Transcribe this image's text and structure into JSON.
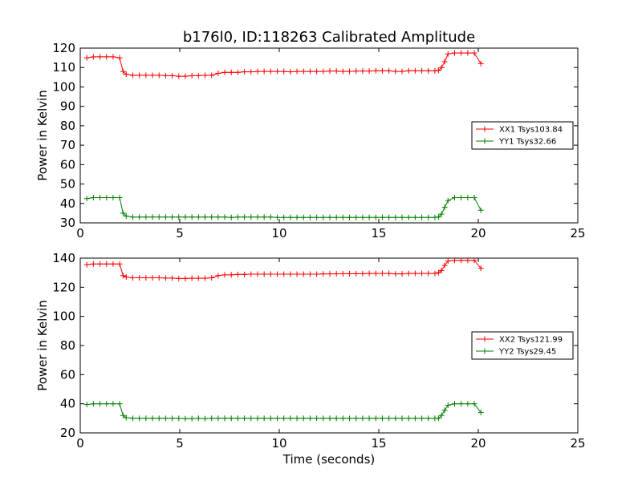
{
  "chart_data": [
    {
      "type": "line",
      "title": "b176l0, ID:118263 Calibrated Amplitude",
      "xlabel": "",
      "ylabel": "Power in Kelvin",
      "xlim": [
        0,
        25
      ],
      "ylim": [
        30,
        120
      ],
      "xticks": [
        "0",
        "5",
        "10",
        "15",
        "20",
        "25"
      ],
      "yticks": [
        "30",
        "40",
        "50",
        "60",
        "70",
        "80",
        "90",
        "100",
        "110",
        "120"
      ],
      "grid": false,
      "legend_position": "center-right",
      "series": [
        {
          "name": "XX1 Tsys103.84",
          "color": "#ff0000",
          "marker": "+",
          "x": [
            0.33,
            0.66,
            0.99,
            1.32,
            1.65,
            1.98,
            2.15,
            2.31,
            2.64,
            2.97,
            3.3,
            3.63,
            3.96,
            4.29,
            4.62,
            4.95,
            5.28,
            5.61,
            5.94,
            6.27,
            6.6,
            6.93,
            7.26,
            7.59,
            7.92,
            8.25,
            8.58,
            8.91,
            9.24,
            9.57,
            9.9,
            10.23,
            10.56,
            10.89,
            11.22,
            11.55,
            11.88,
            12.21,
            12.54,
            12.87,
            13.2,
            13.53,
            13.86,
            14.19,
            14.52,
            14.85,
            15.18,
            15.51,
            15.84,
            16.17,
            16.5,
            16.83,
            17.16,
            17.49,
            17.82,
            18.0,
            18.15,
            18.31,
            18.48,
            18.81,
            19.14,
            19.47,
            19.8,
            20.13
          ],
          "y": [
            115,
            115.5,
            115.5,
            115.5,
            115.5,
            115,
            108,
            106.5,
            106,
            106,
            106,
            106,
            106,
            105.8,
            105.8,
            105.5,
            105.5,
            105.8,
            105.8,
            106,
            106,
            107,
            107.5,
            107.5,
            107.5,
            107.8,
            107.8,
            108,
            108,
            108,
            108,
            108,
            107.8,
            108,
            108,
            108,
            108,
            108,
            108.2,
            108.2,
            108,
            108,
            108.2,
            108.2,
            108.2,
            108.3,
            108.3,
            108.3,
            108,
            108,
            108.3,
            108.3,
            108.3,
            108.3,
            108.3,
            108.5,
            110,
            113,
            117,
            117.5,
            117.5,
            117.5,
            117.5,
            112
          ]
        },
        {
          "name": "YY1 Tsys32.66",
          "color": "#008000",
          "marker": "+",
          "x": [
            0.33,
            0.66,
            0.99,
            1.32,
            1.65,
            1.98,
            2.15,
            2.31,
            2.64,
            2.97,
            3.3,
            3.63,
            3.96,
            4.29,
            4.62,
            4.95,
            5.28,
            5.61,
            5.94,
            6.27,
            6.6,
            6.93,
            7.26,
            7.59,
            7.92,
            8.25,
            8.58,
            8.91,
            9.24,
            9.57,
            9.9,
            10.23,
            10.56,
            10.89,
            11.22,
            11.55,
            11.88,
            12.21,
            12.54,
            12.87,
            13.2,
            13.53,
            13.86,
            14.19,
            14.52,
            14.85,
            15.18,
            15.51,
            15.84,
            16.17,
            16.5,
            16.83,
            17.16,
            17.49,
            17.82,
            18.0,
            18.15,
            18.31,
            18.48,
            18.81,
            19.14,
            19.47,
            19.8,
            20.13
          ],
          "y": [
            42.5,
            43,
            43,
            43,
            43,
            43,
            35,
            33.5,
            33,
            33,
            33,
            33,
            33,
            33,
            33,
            33,
            33,
            33,
            33,
            33,
            33,
            33,
            33,
            32.8,
            33,
            33,
            33,
            33,
            33,
            33,
            32.8,
            32.8,
            32.8,
            32.8,
            32.8,
            32.8,
            32.8,
            32.8,
            32.8,
            32.8,
            32.8,
            32.8,
            32.8,
            32.8,
            32.8,
            32.8,
            32.8,
            32.8,
            32.8,
            32.8,
            32.8,
            32.8,
            32.8,
            32.8,
            32.8,
            33,
            34.5,
            38,
            41.5,
            43,
            43,
            43,
            43,
            36.5
          ]
        }
      ]
    },
    {
      "type": "line",
      "title": "",
      "xlabel": "Time (seconds)",
      "ylabel": "Power in Kelvin",
      "xlim": [
        0,
        25
      ],
      "ylim": [
        20,
        140
      ],
      "xticks": [
        "0",
        "5",
        "10",
        "15",
        "20",
        "25"
      ],
      "yticks": [
        "20",
        "40",
        "60",
        "80",
        "100",
        "120",
        "140"
      ],
      "grid": false,
      "legend_position": "center-right",
      "series": [
        {
          "name": "XX2 Tsys121.99",
          "color": "#ff0000",
          "marker": "+",
          "x": [
            0.33,
            0.66,
            0.99,
            1.32,
            1.65,
            1.98,
            2.15,
            2.31,
            2.64,
            2.97,
            3.3,
            3.63,
            3.96,
            4.29,
            4.62,
            4.95,
            5.28,
            5.61,
            5.94,
            6.27,
            6.6,
            6.93,
            7.26,
            7.59,
            7.92,
            8.25,
            8.58,
            8.91,
            9.24,
            9.57,
            9.9,
            10.23,
            10.56,
            10.89,
            11.22,
            11.55,
            11.88,
            12.21,
            12.54,
            12.87,
            13.2,
            13.53,
            13.86,
            14.19,
            14.52,
            14.85,
            15.18,
            15.51,
            15.84,
            16.17,
            16.5,
            16.83,
            17.16,
            17.49,
            17.82,
            18.0,
            18.15,
            18.31,
            18.48,
            18.81,
            19.14,
            19.47,
            19.8,
            20.13
          ],
          "y": [
            135.5,
            136,
            136,
            136,
            136,
            136,
            128,
            127,
            126.5,
            126.5,
            126.5,
            126.5,
            126.5,
            126.3,
            126.3,
            126,
            126,
            126.2,
            126.2,
            126.2,
            126.5,
            128,
            128.5,
            128.5,
            128.8,
            128.8,
            129,
            129,
            129,
            129,
            129,
            129,
            129,
            129,
            129,
            129,
            129,
            129.2,
            129.2,
            129.2,
            129.3,
            129.3,
            129.3,
            129.3,
            129.5,
            129.5,
            129.5,
            129.5,
            129.2,
            129.2,
            129.5,
            129.5,
            129.5,
            129.5,
            129.5,
            130,
            131.5,
            135,
            138,
            138.5,
            138.5,
            138.5,
            138.5,
            133
          ]
        },
        {
          "name": "YY2 Tsys29.45",
          "color": "#008000",
          "marker": "+",
          "x": [
            0.33,
            0.66,
            0.99,
            1.32,
            1.65,
            1.98,
            2.15,
            2.31,
            2.64,
            2.97,
            3.3,
            3.63,
            3.96,
            4.29,
            4.62,
            4.95,
            5.28,
            5.61,
            5.94,
            6.27,
            6.6,
            6.93,
            7.26,
            7.59,
            7.92,
            8.25,
            8.58,
            8.91,
            9.24,
            9.57,
            9.9,
            10.23,
            10.56,
            10.89,
            11.22,
            11.55,
            11.88,
            12.21,
            12.54,
            12.87,
            13.2,
            13.53,
            13.86,
            14.19,
            14.52,
            14.85,
            15.18,
            15.51,
            15.84,
            16.17,
            16.5,
            16.83,
            17.16,
            17.49,
            17.82,
            18.0,
            18.15,
            18.31,
            18.48,
            18.81,
            19.14,
            19.47,
            19.8,
            20.13
          ],
          "y": [
            39.5,
            40,
            40,
            40,
            40,
            40,
            32,
            30.5,
            30,
            30,
            30,
            30,
            30,
            30,
            30,
            30,
            29.8,
            29.8,
            30,
            29.8,
            30,
            30,
            30,
            30,
            30,
            30,
            30,
            30,
            30,
            30,
            30,
            30,
            30,
            30,
            30,
            30,
            30,
            30,
            30,
            30,
            30,
            30,
            30,
            30,
            30,
            30,
            30,
            30,
            30,
            30,
            30,
            30,
            30,
            30,
            30,
            30,
            32,
            35.5,
            39,
            40,
            40,
            40,
            40,
            34
          ]
        }
      ]
    }
  ]
}
